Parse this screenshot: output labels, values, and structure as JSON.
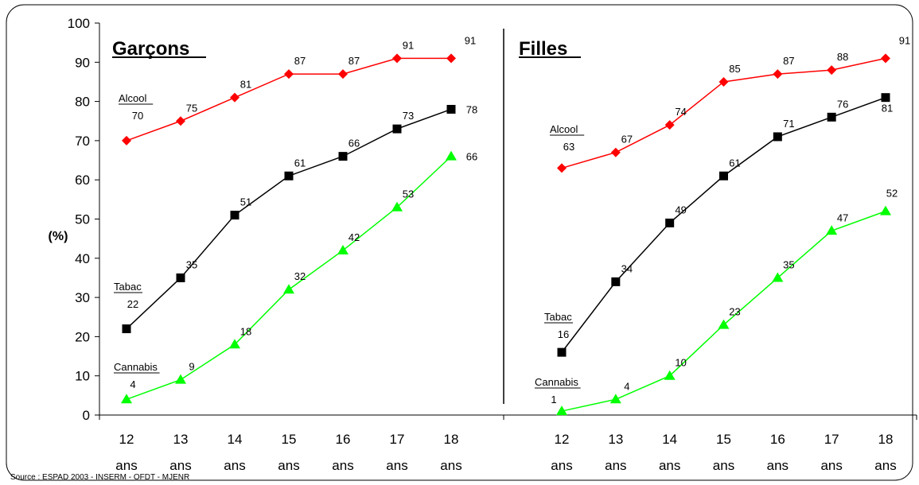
{
  "chart_data": {
    "type": "line",
    "ylabel": "(%)",
    "ylim": [
      0,
      100
    ],
    "yticks": [
      0,
      10,
      20,
      30,
      40,
      50,
      60,
      70,
      80,
      90,
      100
    ],
    "grid": false,
    "categories": [
      "12",
      "13",
      "14",
      "15",
      "16",
      "17",
      "18"
    ],
    "category_unit": "ans",
    "source": "Source : ESPAD 2003 - INSERM - OFDT - MJENR",
    "panels": [
      {
        "title": "Garçons",
        "series": [
          {
            "name": "Alcool",
            "color": "#ff0000",
            "marker": "diamond",
            "values": [
              70,
              75,
              81,
              87,
              87,
              91,
              91
            ]
          },
          {
            "name": "Tabac",
            "color": "#000000",
            "marker": "square",
            "values": [
              22,
              35,
              51,
              61,
              66,
              73,
              78
            ]
          },
          {
            "name": "Cannabis",
            "color": "#00ff00",
            "marker": "triangle",
            "values": [
              4,
              9,
              18,
              32,
              42,
              53,
              66
            ]
          }
        ]
      },
      {
        "title": "Filles",
        "series": [
          {
            "name": "Alcool",
            "color": "#ff0000",
            "marker": "diamond",
            "values": [
              63,
              67,
              74,
              85,
              87,
              88,
              91
            ]
          },
          {
            "name": "Tabac",
            "color": "#000000",
            "marker": "square",
            "values": [
              16,
              34,
              49,
              61,
              71,
              76,
              81
            ]
          },
          {
            "name": "Cannabis",
            "color": "#00ff00",
            "marker": "triangle",
            "values": [
              1,
              4,
              10,
              23,
              35,
              47,
              52
            ]
          }
        ]
      }
    ]
  }
}
